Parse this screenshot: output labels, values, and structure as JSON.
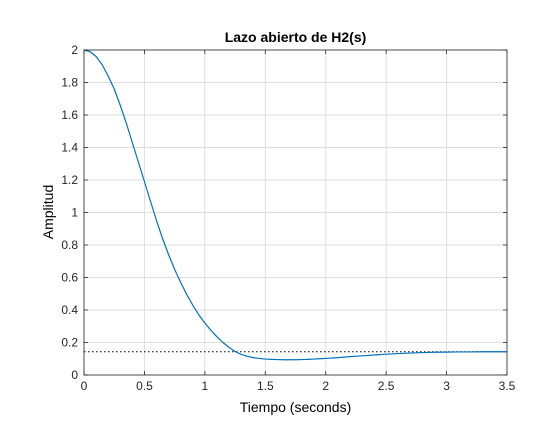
{
  "chart_data": {
    "type": "line",
    "title": "Lazo abierto de H2(s)",
    "xlabel": "Tiempo (seconds)",
    "ylabel": "Amplitud",
    "xlim": [
      0,
      3.5
    ],
    "ylim": [
      0,
      2
    ],
    "xticks": [
      0,
      0.5,
      1,
      1.5,
      2,
      2.5,
      3,
      3.5
    ],
    "xtick_labels": [
      "0",
      "0.5",
      "1",
      "1.5",
      "2",
      "2.5",
      "3",
      "3.5"
    ],
    "yticks": [
      0,
      0.2,
      0.4,
      0.6,
      0.8,
      1,
      1.2,
      1.4,
      1.6,
      1.8,
      2
    ],
    "ytick_labels": [
      "0",
      "0.2",
      "0.4",
      "0.6",
      "0.8",
      "1",
      "1.2",
      "1.4",
      "1.6",
      "1.8",
      "2"
    ],
    "grid": true,
    "series": [
      {
        "color": "#0072bd",
        "x": [
          0,
          0.05,
          0.1,
          0.15,
          0.2,
          0.25,
          0.3,
          0.35,
          0.4,
          0.45,
          0.5,
          0.55,
          0.6,
          0.65,
          0.7,
          0.75,
          0.8,
          0.85,
          0.9,
          0.95,
          1.0,
          1.05,
          1.1,
          1.15,
          1.2,
          1.25,
          1.3,
          1.35,
          1.4,
          1.45,
          1.5,
          1.55,
          1.6,
          1.65,
          1.7,
          1.75,
          1.8,
          1.85,
          1.9,
          1.95,
          2.0,
          2.1,
          2.2,
          2.3,
          2.4,
          2.5,
          2.6,
          2.7,
          2.8,
          2.9,
          3.0,
          3.1,
          3.2,
          3.3,
          3.4,
          3.5
        ],
        "y": [
          2.0,
          1.99,
          1.96,
          1.91,
          1.84,
          1.76,
          1.66,
          1.55,
          1.43,
          1.31,
          1.19,
          1.07,
          0.95,
          0.84,
          0.74,
          0.65,
          0.57,
          0.495,
          0.43,
          0.37,
          0.32,
          0.275,
          0.235,
          0.2,
          0.17,
          0.145,
          0.127,
          0.115,
          0.107,
          0.102,
          0.098,
          0.096,
          0.095,
          0.094,
          0.094,
          0.094,
          0.095,
          0.096,
          0.098,
          0.1,
          0.102,
          0.107,
          0.113,
          0.118,
          0.123,
          0.128,
          0.132,
          0.135,
          0.138,
          0.14,
          0.141,
          0.142,
          0.142,
          0.143,
          0.143,
          0.143
        ]
      }
    ],
    "reference_line": {
      "y": 0.143,
      "style": "dotted",
      "color": "#000000"
    }
  }
}
